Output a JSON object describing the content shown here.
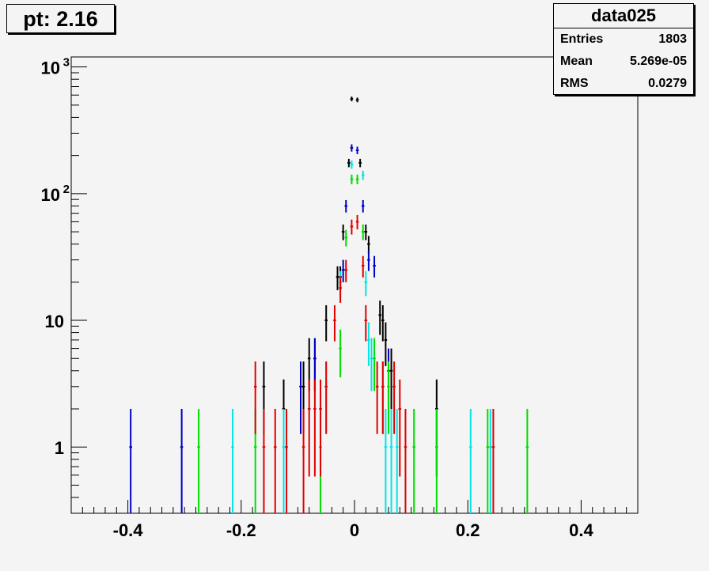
{
  "title": "pt: 2.16",
  "stats": {
    "name": "data025",
    "rows": [
      {
        "label": "Entries",
        "value": "1803"
      },
      {
        "label": "Mean",
        "value": "5.269e-05"
      },
      {
        "label": "RMS",
        "value": "0.0279"
      }
    ]
  },
  "colors": {
    "black": "#000000",
    "blue": "#0000c8",
    "cyan": "#00e5e5",
    "green": "#00dd00",
    "red": "#e00000",
    "frame": "#000000",
    "background": "#f4f4f4"
  },
  "chart_data": {
    "type": "scatter",
    "xlim": [
      -0.5,
      0.5
    ],
    "ylim": [
      0.3,
      1200
    ],
    "log_y": true,
    "grid": false,
    "x_ticks": [
      "-0.4",
      "-0.2",
      "0",
      "0.2",
      "0.4"
    ],
    "x_tick_values": [
      -0.4,
      -0.2,
      0,
      0.2,
      0.4
    ],
    "y_ticks": [
      {
        "value": 1000,
        "label": "10",
        "sup": "3"
      },
      {
        "value": 100,
        "label": "10",
        "sup": "2"
      },
      {
        "value": 10,
        "label": "10",
        "sup": ""
      },
      {
        "value": 1,
        "label": "1",
        "sup": ""
      }
    ],
    "bin_half_width": 0.0025,
    "series": [
      {
        "color_key": "black",
        "points": [
          [
            -0.125,
            2
          ],
          [
            -0.16,
            3
          ],
          [
            -0.08,
            5
          ],
          [
            -0.09,
            3
          ],
          [
            -0.07,
            5
          ],
          [
            -0.05,
            10
          ],
          [
            -0.03,
            22
          ],
          [
            -0.025,
            22
          ],
          [
            -0.02,
            50
          ],
          [
            -0.01,
            175
          ],
          [
            -0.005,
            560
          ],
          [
            0.005,
            550
          ],
          [
            0.01,
            175
          ],
          [
            0.02,
            50
          ],
          [
            0.025,
            40
          ],
          [
            0.045,
            11
          ],
          [
            0.05,
            10
          ],
          [
            0.055,
            7
          ],
          [
            0.065,
            4
          ],
          [
            0.145,
            2
          ]
        ]
      },
      {
        "color_key": "blue",
        "points": [
          [
            -0.395,
            1
          ],
          [
            -0.305,
            1
          ],
          [
            -0.095,
            3
          ],
          [
            -0.07,
            5
          ],
          [
            -0.02,
            25
          ],
          [
            -0.015,
            80
          ],
          [
            -0.005,
            230
          ],
          [
            0.005,
            220
          ],
          [
            0.015,
            80
          ],
          [
            0.025,
            30
          ],
          [
            0.035,
            27
          ],
          [
            0.06,
            4
          ]
        ]
      },
      {
        "color_key": "cyan",
        "points": [
          [
            -0.215,
            1
          ],
          [
            -0.125,
            1
          ],
          [
            -0.05,
            3
          ],
          [
            -0.025,
            20
          ],
          [
            -0.005,
            170
          ],
          [
            0.015,
            140
          ],
          [
            0.02,
            20
          ],
          [
            0.025,
            7
          ],
          [
            0.03,
            5
          ],
          [
            0.055,
            1
          ],
          [
            0.065,
            1
          ],
          [
            0.075,
            1
          ],
          [
            0.205,
            1
          ],
          [
            0.24,
            1
          ]
        ]
      },
      {
        "color_key": "green",
        "points": [
          [
            -0.275,
            1
          ],
          [
            -0.175,
            1
          ],
          [
            -0.06,
            1
          ],
          [
            -0.025,
            6
          ],
          [
            -0.015,
            45
          ],
          [
            -0.005,
            130
          ],
          [
            0.005,
            130
          ],
          [
            0.015,
            50
          ],
          [
            0.035,
            5
          ],
          [
            0.05,
            3
          ],
          [
            0.06,
            3
          ],
          [
            0.105,
            1
          ],
          [
            0.145,
            1
          ],
          [
            0.235,
            1
          ],
          [
            0.305,
            1
          ]
        ]
      },
      {
        "color_key": "red",
        "points": [
          [
            -0.175,
            3
          ],
          [
            -0.16,
            1
          ],
          [
            -0.14,
            1
          ],
          [
            -0.12,
            1
          ],
          [
            -0.09,
            1
          ],
          [
            -0.08,
            2
          ],
          [
            -0.07,
            2
          ],
          [
            -0.06,
            2
          ],
          [
            -0.05,
            3
          ],
          [
            -0.035,
            10
          ],
          [
            -0.025,
            18
          ],
          [
            -0.015,
            25
          ],
          [
            -0.005,
            55
          ],
          [
            0.005,
            60
          ],
          [
            0.015,
            27
          ],
          [
            0.02,
            10
          ],
          [
            0.04,
            3
          ],
          [
            0.05,
            3
          ],
          [
            0.07,
            3
          ],
          [
            0.08,
            2
          ],
          [
            0.09,
            1
          ],
          [
            0.245,
            1
          ]
        ]
      }
    ]
  }
}
